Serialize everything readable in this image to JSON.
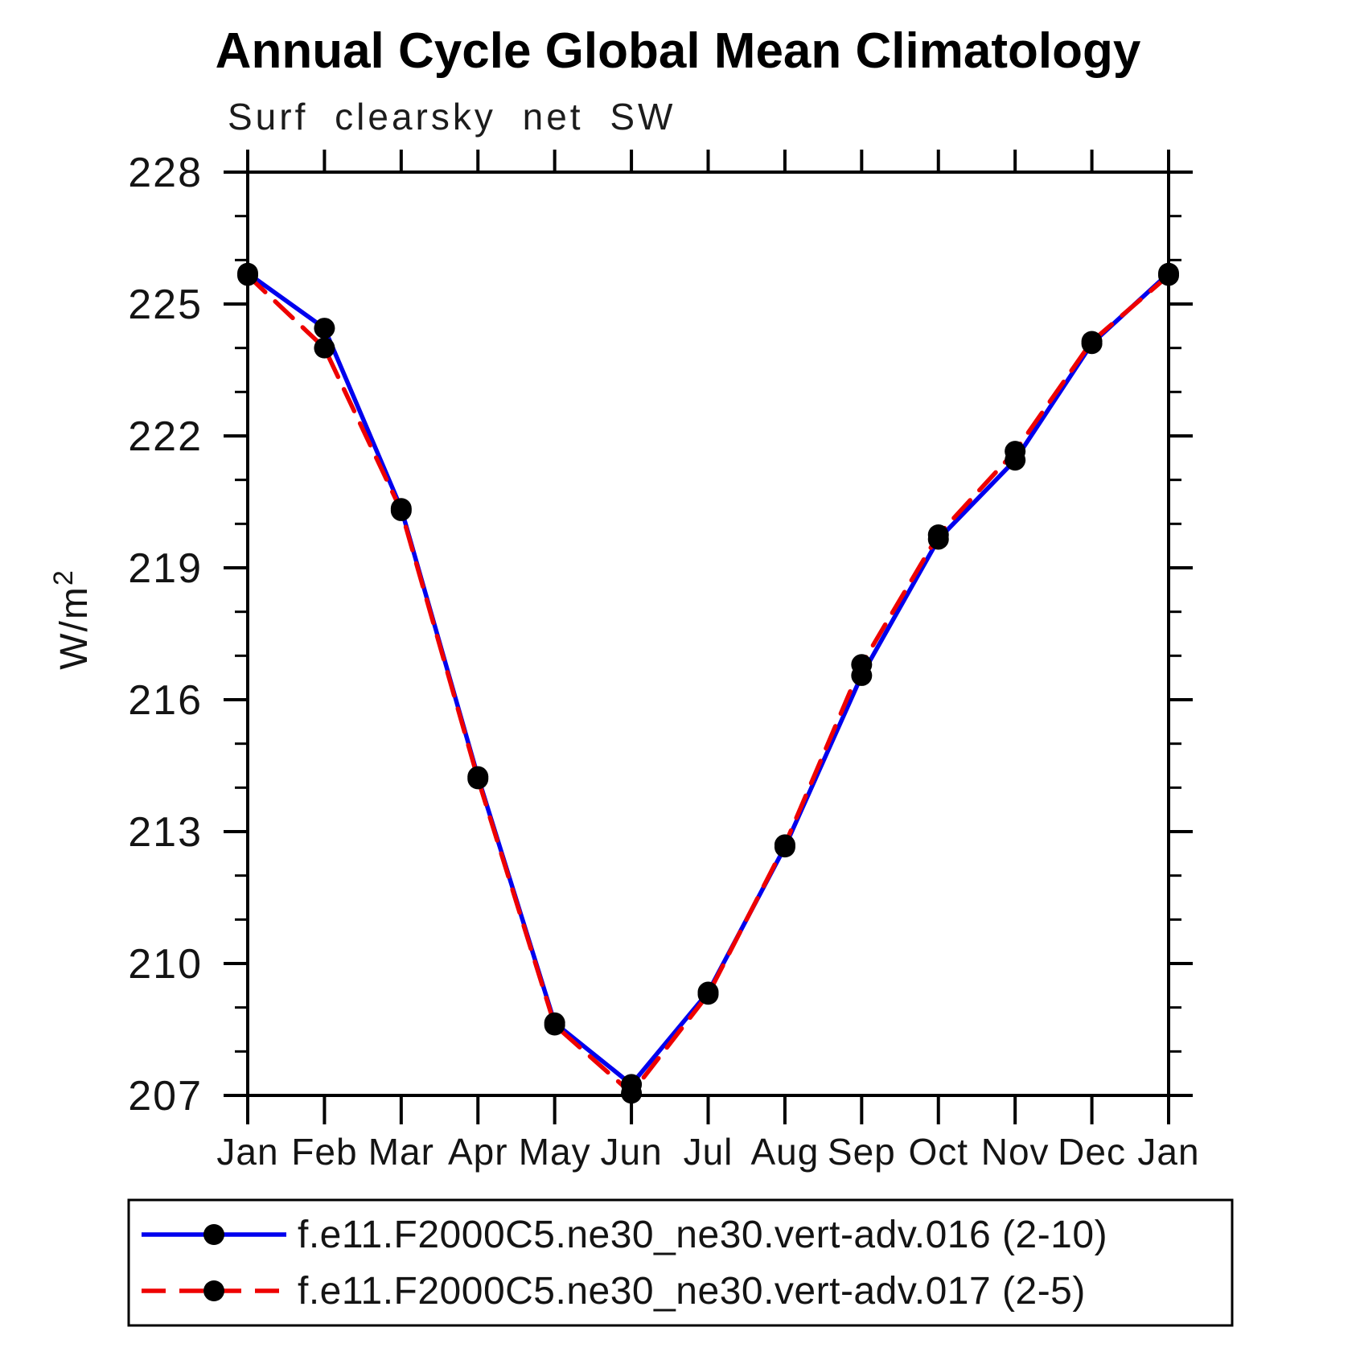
{
  "header": {
    "title": "Annual Cycle Global Mean Climatology",
    "subtitle": "Surf clearsky net SW"
  },
  "chart_data": {
    "type": "line",
    "title": "Annual Cycle Global Mean Climatology",
    "subtitle": "Surf clearsky net SW",
    "ylabel": "W/m²",
    "xlabel": "",
    "categories": [
      "Jan",
      "Feb",
      "Mar",
      "Apr",
      "May",
      "Jun",
      "Jul",
      "Aug",
      "Sep",
      "Oct",
      "Nov",
      "Dec",
      "Jan"
    ],
    "series": [
      {
        "name": "f.e11.F2000C5.ne30_ne30.vert-adv.016 (2-10)",
        "color": "#0000ee",
        "line_style": "solid",
        "marker": "filled-circle",
        "marker_color": "#000000",
        "values": [
          225.7,
          224.45,
          220.35,
          214.25,
          208.65,
          207.25,
          209.35,
          212.65,
          216.55,
          219.65,
          221.45,
          224.1,
          225.7
        ]
      },
      {
        "name": "f.e11.F2000C5.ne30_ne30.vert-adv.017 (2-5)",
        "color": "#ee0000",
        "line_style": "dashed",
        "marker": "filled-circle",
        "marker_color": "#000000",
        "values": [
          225.65,
          224.0,
          220.3,
          214.2,
          208.6,
          207.05,
          209.3,
          212.7,
          216.8,
          219.75,
          221.65,
          224.15,
          225.65
        ]
      }
    ],
    "ylim": [
      207,
      228
    ],
    "y_major_ticks": [
      207,
      210,
      213,
      216,
      219,
      222,
      225,
      228
    ],
    "y_minor_step": 1,
    "grid": false,
    "legend_position": "bottom-box",
    "frame_color": "#000000"
  }
}
